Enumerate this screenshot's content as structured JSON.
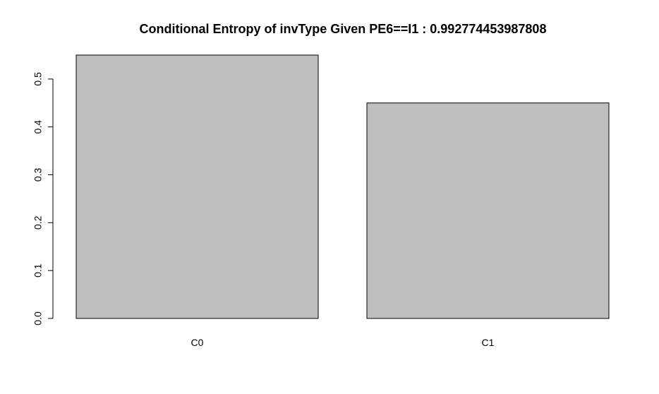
{
  "chart_data": {
    "type": "bar",
    "title": "Conditional Entropy of invType Given PE6==I1 :  0.992774453987808",
    "xlabel": "",
    "ylabel": "",
    "categories": [
      "C0",
      "C1"
    ],
    "values": [
      0.55,
      0.45
    ],
    "ylim": [
      0,
      0.55
    ],
    "yticks": [
      0.0,
      0.1,
      0.2,
      0.3,
      0.4,
      0.5
    ],
    "ytick_labels": [
      "0.0",
      "0.1",
      "0.2",
      "0.3",
      "0.4",
      "0.5"
    ],
    "grid": false,
    "legend": "none",
    "colors": {
      "bar_fill": "#bebebe",
      "bar_stroke": "#000000",
      "axis": "#000000",
      "text": "#000000",
      "background": "#ffffff"
    }
  }
}
